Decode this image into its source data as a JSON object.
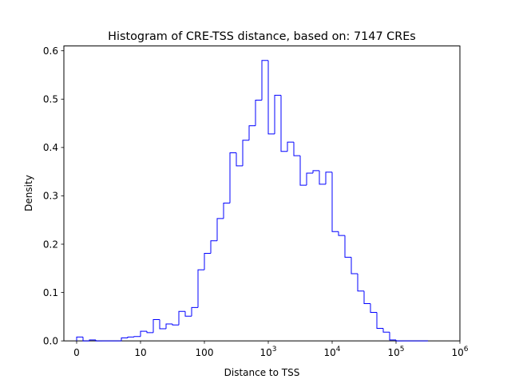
{
  "chart_data": {
    "type": "bar",
    "histogram_style": "step",
    "title": "Histogram of CRE-TSS distance, based on: 7147 CREs",
    "xlabel": "Distance to TSS",
    "ylabel": "Density",
    "x_scale": "symlog",
    "xlim": [
      -0.2,
      6.0
    ],
    "ylim": [
      0,
      0.61
    ],
    "grid": false,
    "line_color": "#0000ff",
    "x_ticks": [
      {
        "value": 0,
        "base": "0",
        "exp": ""
      },
      {
        "value": 1,
        "base": "10",
        "exp": ""
      },
      {
        "value": 2,
        "base": "100",
        "exp": ""
      },
      {
        "value": 3,
        "base": "10",
        "exp": "3"
      },
      {
        "value": 4,
        "base": "10",
        "exp": "4"
      },
      {
        "value": 5,
        "base": "10",
        "exp": "5"
      },
      {
        "value": 6,
        "base": "10",
        "exp": "6"
      }
    ],
    "y_ticks": [
      "0.0",
      "0.1",
      "0.2",
      "0.3",
      "0.4",
      "0.5",
      "0.6"
    ],
    "bin_edges": [
      0.0,
      0.1,
      0.2,
      0.3,
      0.4,
      0.5,
      0.6,
      0.7,
      0.8,
      0.9,
      1.0,
      1.1,
      1.2,
      1.3,
      1.4,
      1.5,
      1.6,
      1.7,
      1.8,
      1.9,
      2.0,
      2.1,
      2.2,
      2.3,
      2.4,
      2.5,
      2.6,
      2.7,
      2.8,
      2.9,
      3.0,
      3.1,
      3.2,
      3.3,
      3.4,
      3.5,
      3.6,
      3.7,
      3.8,
      3.9,
      4.0,
      4.1,
      4.2,
      4.3,
      4.4,
      4.5,
      4.6,
      4.7,
      4.8,
      4.9,
      5.0,
      5.1,
      5.2,
      5.3,
      5.4,
      5.5
    ],
    "values": [
      0.008,
      0.0,
      0.002,
      0.0,
      0.0,
      0.0,
      0.0,
      0.006,
      0.008,
      0.009,
      0.02,
      0.017,
      0.044,
      0.025,
      0.035,
      0.033,
      0.061,
      0.051,
      0.069,
      0.147,
      0.181,
      0.207,
      0.253,
      0.285,
      0.389,
      0.362,
      0.415,
      0.445,
      0.498,
      0.58,
      0.428,
      0.508,
      0.392,
      0.411,
      0.383,
      0.322,
      0.347,
      0.352,
      0.324,
      0.349,
      0.226,
      0.218,
      0.173,
      0.139,
      0.103,
      0.077,
      0.059,
      0.026,
      0.018,
      0.002,
      0.0,
      0.0,
      0.0,
      0.0,
      0.0
    ]
  }
}
